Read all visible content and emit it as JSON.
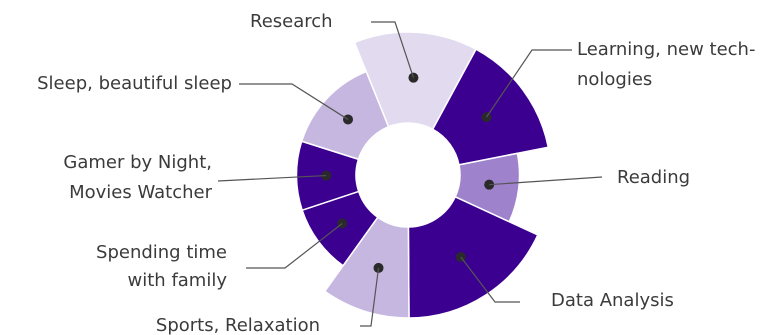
{
  "chart_data": {
    "type": "pie",
    "variant": "rose-donut",
    "categories": [
      "Research",
      "Learning, new technologies",
      "Reading",
      "Data Analysis",
      "Sports, Relaxation",
      "Spending time with family",
      "Gamer by Night, Movies Watcher",
      "Sleep, beautiful sleep"
    ],
    "values": [
      14,
      14,
      10,
      18,
      10,
      10,
      10,
      14
    ],
    "relative_radius": [
      1.0,
      1.0,
      0.78,
      1.0,
      1.0,
      0.78,
      0.78,
      0.78
    ],
    "colors": [
      "#e2dbf0",
      "#3b0090",
      "#9f82cc",
      "#3b0090",
      "#c6b7e0",
      "#3b0090",
      "#3b0090",
      "#c6b7e0"
    ],
    "title": "",
    "legend": "none"
  }
}
